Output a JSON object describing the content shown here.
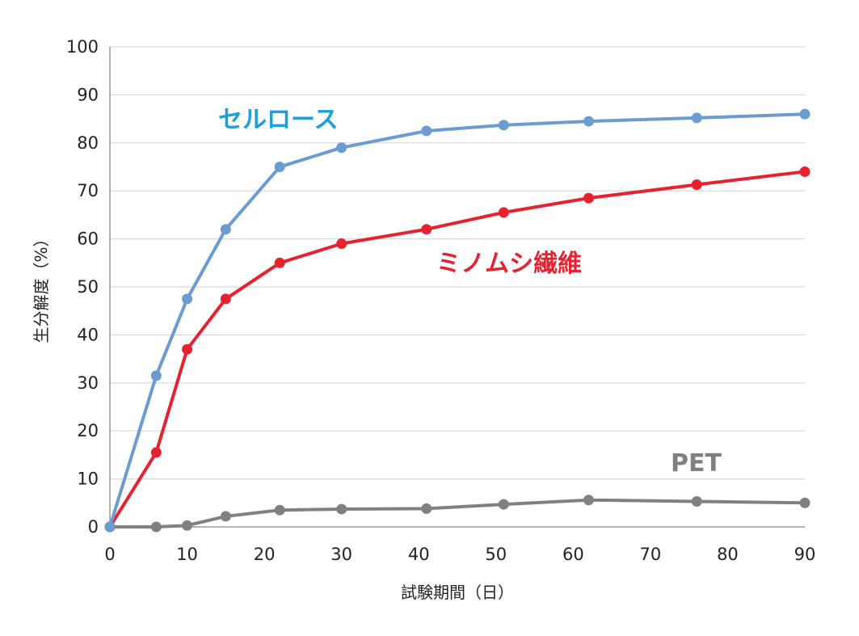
{
  "chart_data": {
    "type": "line",
    "xlabel": "試験期間（日）",
    "ylabel": "生分解度（%）",
    "xlim": [
      0,
      90
    ],
    "ylim": [
      0,
      100
    ],
    "xticks": [
      "0",
      "10",
      "20",
      "30",
      "40",
      "50",
      "60",
      "70",
      "80",
      "90"
    ],
    "yticks": [
      "0",
      "10",
      "20",
      "30",
      "40",
      "50",
      "60",
      "70",
      "80",
      "90",
      "100"
    ],
    "grid": "horizontal",
    "series": [
      {
        "name": "セルロース",
        "color": "#6a9bd1",
        "label_color": "#1aa0dc",
        "x": [
          0,
          6,
          10,
          15,
          22,
          30,
          41,
          51,
          62,
          76,
          90
        ],
        "y": [
          0,
          31.5,
          47.5,
          62,
          75,
          79,
          82.5,
          83.7,
          84.5,
          85.2,
          86
        ]
      },
      {
        "name": "ミノムシ繊維",
        "color": "#e8212e",
        "label_color": "#e8212e",
        "x": [
          0,
          6,
          10,
          15,
          22,
          30,
          41,
          51,
          62,
          76,
          90
        ],
        "y": [
          0,
          15.5,
          37,
          47.5,
          55,
          59,
          62,
          65.5,
          68.5,
          71.3,
          74
        ]
      },
      {
        "name": "PET",
        "color": "#808080",
        "label_color": "#808080",
        "x": [
          0,
          6,
          10,
          15,
          22,
          30,
          41,
          51,
          62,
          76,
          90
        ],
        "y": [
          0,
          0,
          0.3,
          2.2,
          3.5,
          3.7,
          3.8,
          4.7,
          5.6,
          5.3,
          5
        ]
      }
    ]
  }
}
